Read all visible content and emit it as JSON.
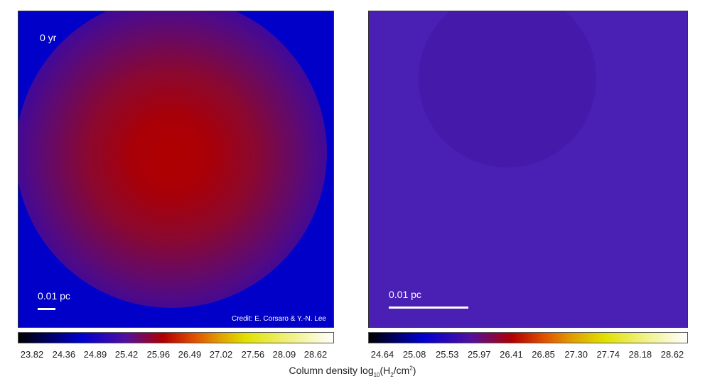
{
  "panels": [
    {
      "time_label": "0 yr",
      "scale_label": "0.01 pc",
      "credit": "Credit: E. Corsaro & Y.-N. Lee"
    },
    {
      "scale_label": "0.01 pc"
    }
  ],
  "colorbars": [
    {
      "ticks": [
        23.82,
        24.36,
        24.89,
        25.42,
        25.96,
        26.49,
        27.02,
        27.56,
        28.09,
        28.62
      ]
    },
    {
      "ticks": [
        24.64,
        25.08,
        25.53,
        25.97,
        26.41,
        26.85,
        {
          "value": 27.3,
          "label": "27.30"
        },
        27.74,
        28.18,
        28.62
      ]
    }
  ],
  "colorbar_label": {
    "text": "Column density log",
    "log_base": "10",
    "open": "(H",
    "sub": "2",
    "unit": "/cm",
    "sup": "2",
    "close": ")"
  }
}
